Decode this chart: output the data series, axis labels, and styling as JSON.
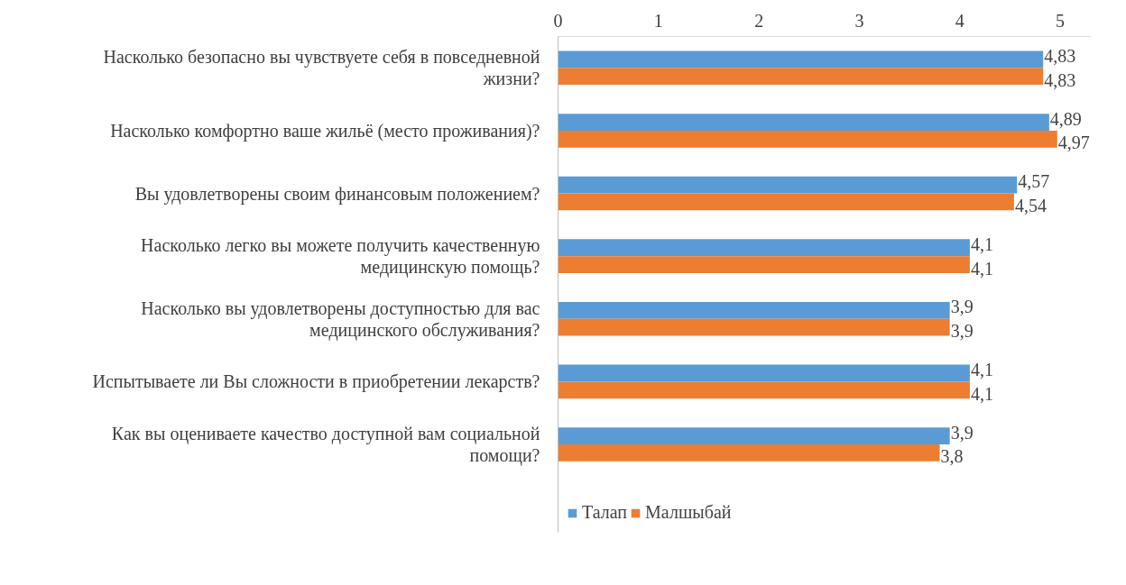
{
  "chart_data": {
    "type": "bar",
    "orientation": "horizontal",
    "categories": [
      "Насколько безопасно вы чувствуете себя в повседневной жизни?",
      "Насколько комфортно ваше жильё (место проживания)?",
      "Вы удовлетворены своим финансовым положением?",
      "Насколько легко вы можете получить качественную медицинскую помощь?",
      "Насколько вы удовлетворены доступностью для вас медицинского обслуживания?",
      "Испытываете ли Вы сложности в приобретении лекарств?",
      "Как вы оцениваете качество доступной вам социальной помощи?"
    ],
    "series": [
      {
        "name": "Талап",
        "color": "#5b9bd5",
        "values": [
          4.83,
          4.89,
          4.57,
          4.1,
          3.9,
          4.1,
          3.9
        ],
        "value_labels": [
          "4,83",
          "4,89",
          "4,57",
          "4,1",
          "3,9",
          "4,1",
          "3,9"
        ]
      },
      {
        "name": "Малшыбай",
        "color": "#ed7d31",
        "values": [
          4.83,
          4.97,
          4.54,
          4.1,
          3.9,
          4.1,
          3.8
        ],
        "value_labels": [
          "4,83",
          "4,97",
          "4,54",
          "4,1",
          "3,9",
          "4,1",
          "3,8"
        ]
      }
    ],
    "xlim": [
      0,
      5.3
    ],
    "xticks": [
      0,
      1,
      2,
      3,
      4,
      5
    ],
    "grid": false,
    "legend": "bottom"
  }
}
